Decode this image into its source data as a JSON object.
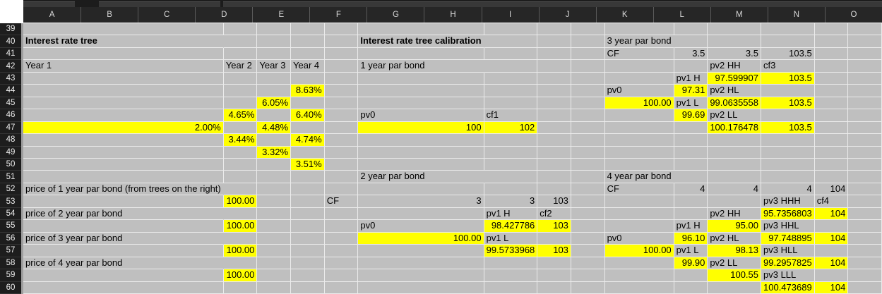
{
  "sheet": {
    "name": "interest-rate-tree-worksheet",
    "columns": [
      "A",
      "B",
      "C",
      "D",
      "E",
      "F",
      "G",
      "H",
      "I",
      "J",
      "K",
      "L",
      "M",
      "N",
      "O"
    ],
    "row_start": 39,
    "row_end": 60,
    "colors": {
      "highlight": "#ffff00",
      "grid_background": "#bfbfbf",
      "gridline": "#ebebeb",
      "header_background": "#262626",
      "header_text": "#d9d9d9",
      "row_header_background": "#1d1d1d",
      "corner": "#ffffff",
      "cell_text": "#000000"
    },
    "cells": [
      {
        "col": "A",
        "row": 40,
        "value": "Interest rate tree",
        "bold": true,
        "align": "left",
        "highlight": false,
        "spill": true
      },
      {
        "col": "F",
        "row": 40,
        "value": "Interest rate tree calibration",
        "bold": true,
        "align": "left",
        "highlight": false,
        "spill": true
      },
      {
        "col": "J",
        "row": 40,
        "value": "3 year par bond",
        "bold": false,
        "align": "left",
        "highlight": false,
        "spill": true
      },
      {
        "col": "J",
        "row": 41,
        "value": "CF",
        "bold": false,
        "align": "left",
        "highlight": false
      },
      {
        "col": "K",
        "row": 41,
        "value": "3.5",
        "bold": false,
        "align": "right",
        "highlight": false
      },
      {
        "col": "L",
        "row": 41,
        "value": "3.5",
        "bold": false,
        "align": "right",
        "highlight": false
      },
      {
        "col": "M",
        "row": 41,
        "value": "103.5",
        "bold": false,
        "align": "right",
        "highlight": false
      },
      {
        "col": "A",
        "row": 42,
        "value": "Year 1",
        "bold": false,
        "align": "left",
        "highlight": false
      },
      {
        "col": "B",
        "row": 42,
        "value": "Year 2",
        "bold": false,
        "align": "left",
        "highlight": false
      },
      {
        "col": "C",
        "row": 42,
        "value": "Year 3",
        "bold": false,
        "align": "left",
        "highlight": false
      },
      {
        "col": "D",
        "row": 42,
        "value": "Year 4",
        "bold": false,
        "align": "left",
        "highlight": false
      },
      {
        "col": "F",
        "row": 42,
        "value": "1 year par bond",
        "bold": false,
        "align": "left",
        "highlight": false,
        "spill": true
      },
      {
        "col": "L",
        "row": 42,
        "value": "pv2 HH",
        "bold": false,
        "align": "left",
        "highlight": false
      },
      {
        "col": "M",
        "row": 42,
        "value": "cf3",
        "bold": false,
        "align": "left",
        "highlight": false
      },
      {
        "col": "K",
        "row": 43,
        "value": "pv1 H",
        "bold": false,
        "align": "left",
        "highlight": false
      },
      {
        "col": "L",
        "row": 43,
        "value": "97.599907",
        "bold": false,
        "align": "right",
        "highlight": true
      },
      {
        "col": "M",
        "row": 43,
        "value": "103.5",
        "bold": false,
        "align": "right",
        "highlight": true
      },
      {
        "col": "D",
        "row": 44,
        "value": "8.63%",
        "bold": false,
        "align": "right",
        "highlight": true
      },
      {
        "col": "J",
        "row": 44,
        "value": "pv0",
        "bold": false,
        "align": "left",
        "highlight": false
      },
      {
        "col": "K",
        "row": 44,
        "value": "97.31",
        "bold": false,
        "align": "right",
        "highlight": true
      },
      {
        "col": "L",
        "row": 44,
        "value": "pv2 HL",
        "bold": false,
        "align": "left",
        "highlight": false
      },
      {
        "col": "C",
        "row": 45,
        "value": "6.05%",
        "bold": false,
        "align": "right",
        "highlight": true
      },
      {
        "col": "J",
        "row": 45,
        "value": "100.00",
        "bold": false,
        "align": "right",
        "highlight": true
      },
      {
        "col": "K",
        "row": 45,
        "value": "pv1 L",
        "bold": false,
        "align": "left",
        "highlight": false
      },
      {
        "col": "L",
        "row": 45,
        "value": "99.0635558",
        "bold": false,
        "align": "right",
        "highlight": true
      },
      {
        "col": "M",
        "row": 45,
        "value": "103.5",
        "bold": false,
        "align": "right",
        "highlight": true
      },
      {
        "col": "B",
        "row": 46,
        "value": "4.65%",
        "bold": false,
        "align": "right",
        "highlight": true
      },
      {
        "col": "D",
        "row": 46,
        "value": "6.40%",
        "bold": false,
        "align": "right",
        "highlight": true
      },
      {
        "col": "F",
        "row": 46,
        "value": "pv0",
        "bold": false,
        "align": "left",
        "highlight": false
      },
      {
        "col": "G",
        "row": 46,
        "value": "cf1",
        "bold": false,
        "align": "left",
        "highlight": false
      },
      {
        "col": "K",
        "row": 46,
        "value": "99.69",
        "bold": false,
        "align": "right",
        "highlight": true
      },
      {
        "col": "L",
        "row": 46,
        "value": "pv2 LL",
        "bold": false,
        "align": "left",
        "highlight": false
      },
      {
        "col": "A",
        "row": 47,
        "value": "2.00%",
        "bold": false,
        "align": "right",
        "highlight": true
      },
      {
        "col": "C",
        "row": 47,
        "value": "4.48%",
        "bold": false,
        "align": "right",
        "highlight": true
      },
      {
        "col": "F",
        "row": 47,
        "value": "100",
        "bold": false,
        "align": "right",
        "highlight": true
      },
      {
        "col": "G",
        "row": 47,
        "value": "102",
        "bold": false,
        "align": "right",
        "highlight": true
      },
      {
        "col": "L",
        "row": 47,
        "value": "100.176478",
        "bold": false,
        "align": "right",
        "highlight": true
      },
      {
        "col": "M",
        "row": 47,
        "value": "103.5",
        "bold": false,
        "align": "right",
        "highlight": true
      },
      {
        "col": "B",
        "row": 48,
        "value": "3.44%",
        "bold": false,
        "align": "right",
        "highlight": true
      },
      {
        "col": "D",
        "row": 48,
        "value": "4.74%",
        "bold": false,
        "align": "right",
        "highlight": true
      },
      {
        "col": "C",
        "row": 49,
        "value": "3.32%",
        "bold": false,
        "align": "right",
        "highlight": true
      },
      {
        "col": "D",
        "row": 50,
        "value": "3.51%",
        "bold": false,
        "align": "right",
        "highlight": true
      },
      {
        "col": "F",
        "row": 51,
        "value": "2 year par bond",
        "bold": false,
        "align": "left",
        "highlight": false,
        "spill": true
      },
      {
        "col": "J",
        "row": 51,
        "value": "4 year par bond",
        "bold": false,
        "align": "left",
        "highlight": false,
        "spill": true
      },
      {
        "col": "A",
        "row": 52,
        "value": "price of 1 year par bond (from trees on the right)",
        "bold": false,
        "align": "left",
        "highlight": false,
        "spill": true
      },
      {
        "col": "J",
        "row": 52,
        "value": "CF",
        "bold": false,
        "align": "left",
        "highlight": false
      },
      {
        "col": "K",
        "row": 52,
        "value": "4",
        "bold": false,
        "align": "right",
        "highlight": false
      },
      {
        "col": "L",
        "row": 52,
        "value": "4",
        "bold": false,
        "align": "right",
        "highlight": false
      },
      {
        "col": "M",
        "row": 52,
        "value": "4",
        "bold": false,
        "align": "right",
        "highlight": false
      },
      {
        "col": "N",
        "row": 52,
        "value": "104",
        "bold": false,
        "align": "right",
        "highlight": false
      },
      {
        "col": "B",
        "row": 53,
        "value": "100.00",
        "bold": false,
        "align": "right",
        "highlight": true
      },
      {
        "col": "E",
        "row": 53,
        "value": "CF",
        "bold": false,
        "align": "left",
        "highlight": false
      },
      {
        "col": "F",
        "row": 53,
        "value": "3",
        "bold": false,
        "align": "right",
        "highlight": false
      },
      {
        "col": "G",
        "row": 53,
        "value": "3",
        "bold": false,
        "align": "right",
        "highlight": false
      },
      {
        "col": "H",
        "row": 53,
        "value": "103",
        "bold": false,
        "align": "right",
        "highlight": false
      },
      {
        "col": "M",
        "row": 53,
        "value": "pv3 HHH",
        "bold": false,
        "align": "left",
        "highlight": false
      },
      {
        "col": "N",
        "row": 53,
        "value": "cf4",
        "bold": false,
        "align": "left",
        "highlight": false
      },
      {
        "col": "A",
        "row": 54,
        "value": "price of 2 year par bond",
        "bold": false,
        "align": "left",
        "highlight": false,
        "spill": true
      },
      {
        "col": "G",
        "row": 54,
        "value": "pv1 H",
        "bold": false,
        "align": "left",
        "highlight": false
      },
      {
        "col": "H",
        "row": 54,
        "value": "cf2",
        "bold": false,
        "align": "left",
        "highlight": false
      },
      {
        "col": "L",
        "row": 54,
        "value": "pv2 HH",
        "bold": false,
        "align": "left",
        "highlight": false
      },
      {
        "col": "M",
        "row": 54,
        "value": "95.7356803",
        "bold": false,
        "align": "right",
        "highlight": true
      },
      {
        "col": "N",
        "row": 54,
        "value": "104",
        "bold": false,
        "align": "right",
        "highlight": true
      },
      {
        "col": "B",
        "row": 55,
        "value": "100.00",
        "bold": false,
        "align": "right",
        "highlight": true
      },
      {
        "col": "F",
        "row": 55,
        "value": "pv0",
        "bold": false,
        "align": "left",
        "highlight": false
      },
      {
        "col": "G",
        "row": 55,
        "value": "98.427786",
        "bold": false,
        "align": "right",
        "highlight": true
      },
      {
        "col": "H",
        "row": 55,
        "value": "103",
        "bold": false,
        "align": "right",
        "highlight": true
      },
      {
        "col": "K",
        "row": 55,
        "value": "pv1 H",
        "bold": false,
        "align": "left",
        "highlight": false
      },
      {
        "col": "L",
        "row": 55,
        "value": "95.00",
        "bold": false,
        "align": "right",
        "highlight": true
      },
      {
        "col": "M",
        "row": 55,
        "value": "pv3 HHL",
        "bold": false,
        "align": "left",
        "highlight": false
      },
      {
        "col": "A",
        "row": 56,
        "value": "price of 3 year par bond",
        "bold": false,
        "align": "left",
        "highlight": false,
        "spill": true
      },
      {
        "col": "F",
        "row": 56,
        "value": "100.00",
        "bold": false,
        "align": "right",
        "highlight": true
      },
      {
        "col": "G",
        "row": 56,
        "value": "pv1 L",
        "bold": false,
        "align": "left",
        "highlight": false
      },
      {
        "col": "J",
        "row": 56,
        "value": "pv0",
        "bold": false,
        "align": "left",
        "highlight": false
      },
      {
        "col": "K",
        "row": 56,
        "value": "96.10",
        "bold": false,
        "align": "right",
        "highlight": true
      },
      {
        "col": "L",
        "row": 56,
        "value": "pv2 HL",
        "bold": false,
        "align": "left",
        "highlight": false
      },
      {
        "col": "M",
        "row": 56,
        "value": "97.748895",
        "bold": false,
        "align": "right",
        "highlight": true
      },
      {
        "col": "N",
        "row": 56,
        "value": "104",
        "bold": false,
        "align": "right",
        "highlight": true
      },
      {
        "col": "B",
        "row": 57,
        "value": "100.00",
        "bold": false,
        "align": "right",
        "highlight": true
      },
      {
        "col": "G",
        "row": 57,
        "value": "99.5733968",
        "bold": false,
        "align": "right",
        "highlight": true
      },
      {
        "col": "H",
        "row": 57,
        "value": "103",
        "bold": false,
        "align": "right",
        "highlight": true
      },
      {
        "col": "J",
        "row": 57,
        "value": "100.00",
        "bold": false,
        "align": "right",
        "highlight": true
      },
      {
        "col": "K",
        "row": 57,
        "value": "pv1 L",
        "bold": false,
        "align": "left",
        "highlight": false
      },
      {
        "col": "L",
        "row": 57,
        "value": "98.13",
        "bold": false,
        "align": "right",
        "highlight": true
      },
      {
        "col": "M",
        "row": 57,
        "value": "pv3 HLL",
        "bold": false,
        "align": "left",
        "highlight": false
      },
      {
        "col": "A",
        "row": 58,
        "value": "price of 4 year par bond",
        "bold": false,
        "align": "left",
        "highlight": false,
        "spill": true
      },
      {
        "col": "K",
        "row": 58,
        "value": "99.90",
        "bold": false,
        "align": "right",
        "highlight": true
      },
      {
        "col": "L",
        "row": 58,
        "value": "pv2 LL",
        "bold": false,
        "align": "left",
        "highlight": false
      },
      {
        "col": "M",
        "row": 58,
        "value": "99.2957825",
        "bold": false,
        "align": "right",
        "highlight": true
      },
      {
        "col": "N",
        "row": 58,
        "value": "104",
        "bold": false,
        "align": "right",
        "highlight": true
      },
      {
        "col": "B",
        "row": 59,
        "value": "100.00",
        "bold": false,
        "align": "right",
        "highlight": true
      },
      {
        "col": "L",
        "row": 59,
        "value": "100.55",
        "bold": false,
        "align": "right",
        "highlight": true
      },
      {
        "col": "M",
        "row": 59,
        "value": "pv3 LLL",
        "bold": false,
        "align": "left",
        "highlight": false
      },
      {
        "col": "M",
        "row": 60,
        "value": "100.473689",
        "bold": false,
        "align": "right",
        "highlight": true
      },
      {
        "col": "N",
        "row": 60,
        "value": "104",
        "bold": false,
        "align": "right",
        "highlight": true
      }
    ]
  }
}
